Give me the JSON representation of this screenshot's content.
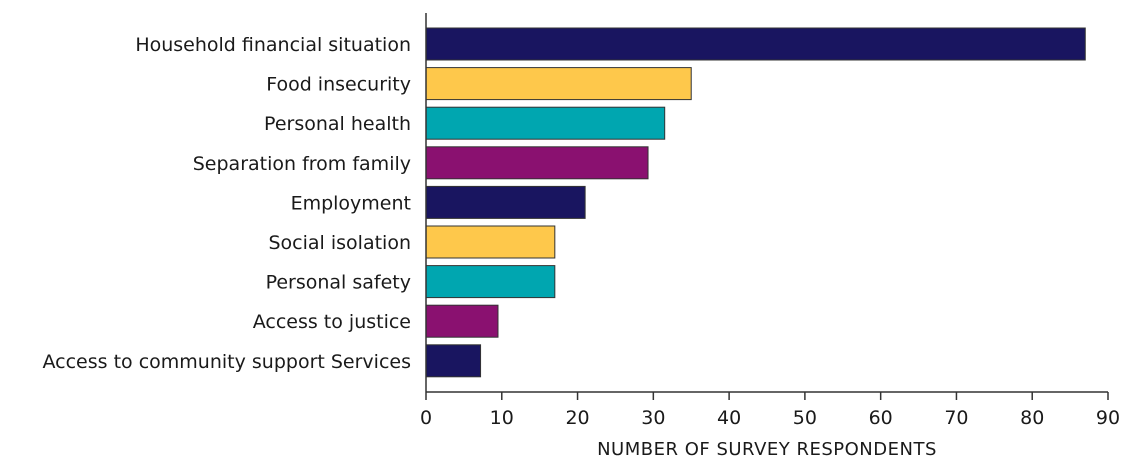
{
  "chart_data": {
    "type": "bar",
    "orientation": "horizontal",
    "title": "",
    "xlabel": "NUMBER OF SURVEY RESPONDENTS",
    "ylabel": "",
    "xlim": [
      0,
      90
    ],
    "x_ticks": [
      0,
      10,
      20,
      30,
      40,
      50,
      60,
      70,
      80,
      90
    ],
    "grid": false,
    "legend": "none",
    "categories": [
      "Household financial situation",
      "Food insecurity",
      "Personal health",
      "Separation from family",
      "Employment",
      "Social isolation",
      "Personal safety",
      "Access to justice",
      "Access to community support Services"
    ],
    "values": [
      87,
      35,
      31.5,
      29.3,
      21,
      17,
      17,
      9.5,
      7.2
    ],
    "bar_colors": [
      "#191560",
      "#FEC84B",
      "#00A6B0",
      "#8A1170",
      "#191560",
      "#FEC84B",
      "#00A6B0",
      "#8A1170",
      "#191560"
    ]
  }
}
